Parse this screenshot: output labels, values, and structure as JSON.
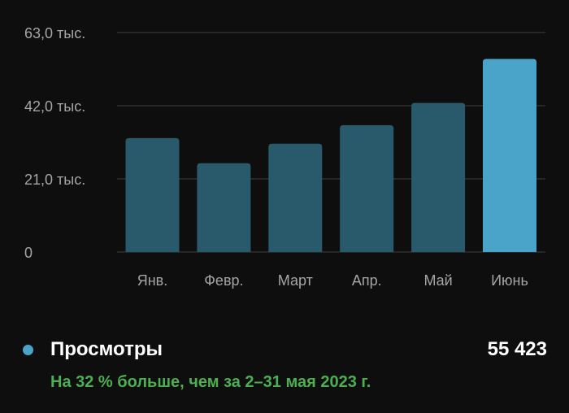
{
  "chart_data": {
    "type": "bar",
    "categories": [
      "Янв.",
      "Февр.",
      "Март",
      "Апр.",
      "Май",
      "Июнь"
    ],
    "values": [
      32700,
      25500,
      31100,
      36400,
      42800,
      55423
    ],
    "ylim": [
      0,
      63000
    ],
    "yticks": [
      {
        "value": 0,
        "label": "0"
      },
      {
        "value": 21000,
        "label": "21,0 тыс."
      },
      {
        "value": 42000,
        "label": "42,0 тыс."
      },
      {
        "value": 63000,
        "label": "63,0 тыс."
      }
    ],
    "grid": true,
    "highlight_index": 5,
    "colors": {
      "bar": "#295a6b",
      "highlight": "#4aa3c8",
      "grid": "#2e2e2e",
      "background": "#0e0e0e"
    }
  },
  "legend": {
    "label": "Просмотры",
    "value": "55 423",
    "color": "#4aa3c8",
    "comparison": "На 32 % больше, чем за 2–31 мая 2023 г.",
    "comparison_color": "#4caf50"
  }
}
